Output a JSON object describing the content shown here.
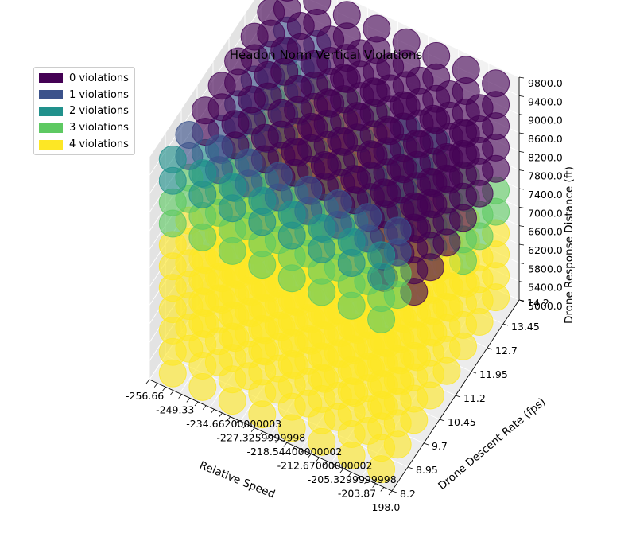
{
  "chart_data": {
    "type": "scatter",
    "subtype": "3d",
    "title": "Headon Norm Vertical Violations",
    "xlabel": "Relative Speed",
    "ylabel": "Drone Descent Rate (fps)",
    "zlabel": "Drone Response Distance (ft)",
    "x_range": [
      -256.66,
      -198.0
    ],
    "y_range": [
      8.2,
      14.2
    ],
    "z_range": [
      5000.0,
      9800.0
    ],
    "x_ticks": [
      "-256.66",
      "-249.33",
      "-242.0",
      "-234.66",
      "-227.33",
      "-220.0",
      "-212.67",
      "-205.33",
      "-198.0"
    ],
    "x_tick_labels_visible": [
      "-256.66",
      "-249.33",
      "-234.66200000003",
      "-227.3259999998",
      "-218.54400000002",
      "-212.67000000002",
      "-205.3299999998",
      "-203.87",
      "-198.0"
    ],
    "y_ticks": [
      "8.2",
      "8.95",
      "9.7",
      "10.45",
      "11.2",
      "11.95",
      "12.7",
      "13.45",
      "14.2"
    ],
    "z_ticks": [
      "5000.0",
      "5400.0",
      "5800.0",
      "6200.0",
      "6600.0",
      "7000.0",
      "7400.0",
      "7800.0",
      "8200.0",
      "8600.0",
      "9000.0",
      "9400.0",
      "9800.0"
    ],
    "legend_position": "upper-left",
    "grid": true,
    "series": [
      {
        "name": "0 violations",
        "color": "#440154",
        "region": "high response distance and slow closing speed"
      },
      {
        "name": "1 violations",
        "color": "#3b528b",
        "region": "transition boundary"
      },
      {
        "name": "2 violations",
        "color": "#21918c",
        "region": "transition boundary"
      },
      {
        "name": "3 violations",
        "color": "#5ec962",
        "region": "mid response distance"
      },
      {
        "name": "4 violations",
        "color": "#fde725",
        "region": "low response distance and fast closing speed"
      }
    ]
  }
}
